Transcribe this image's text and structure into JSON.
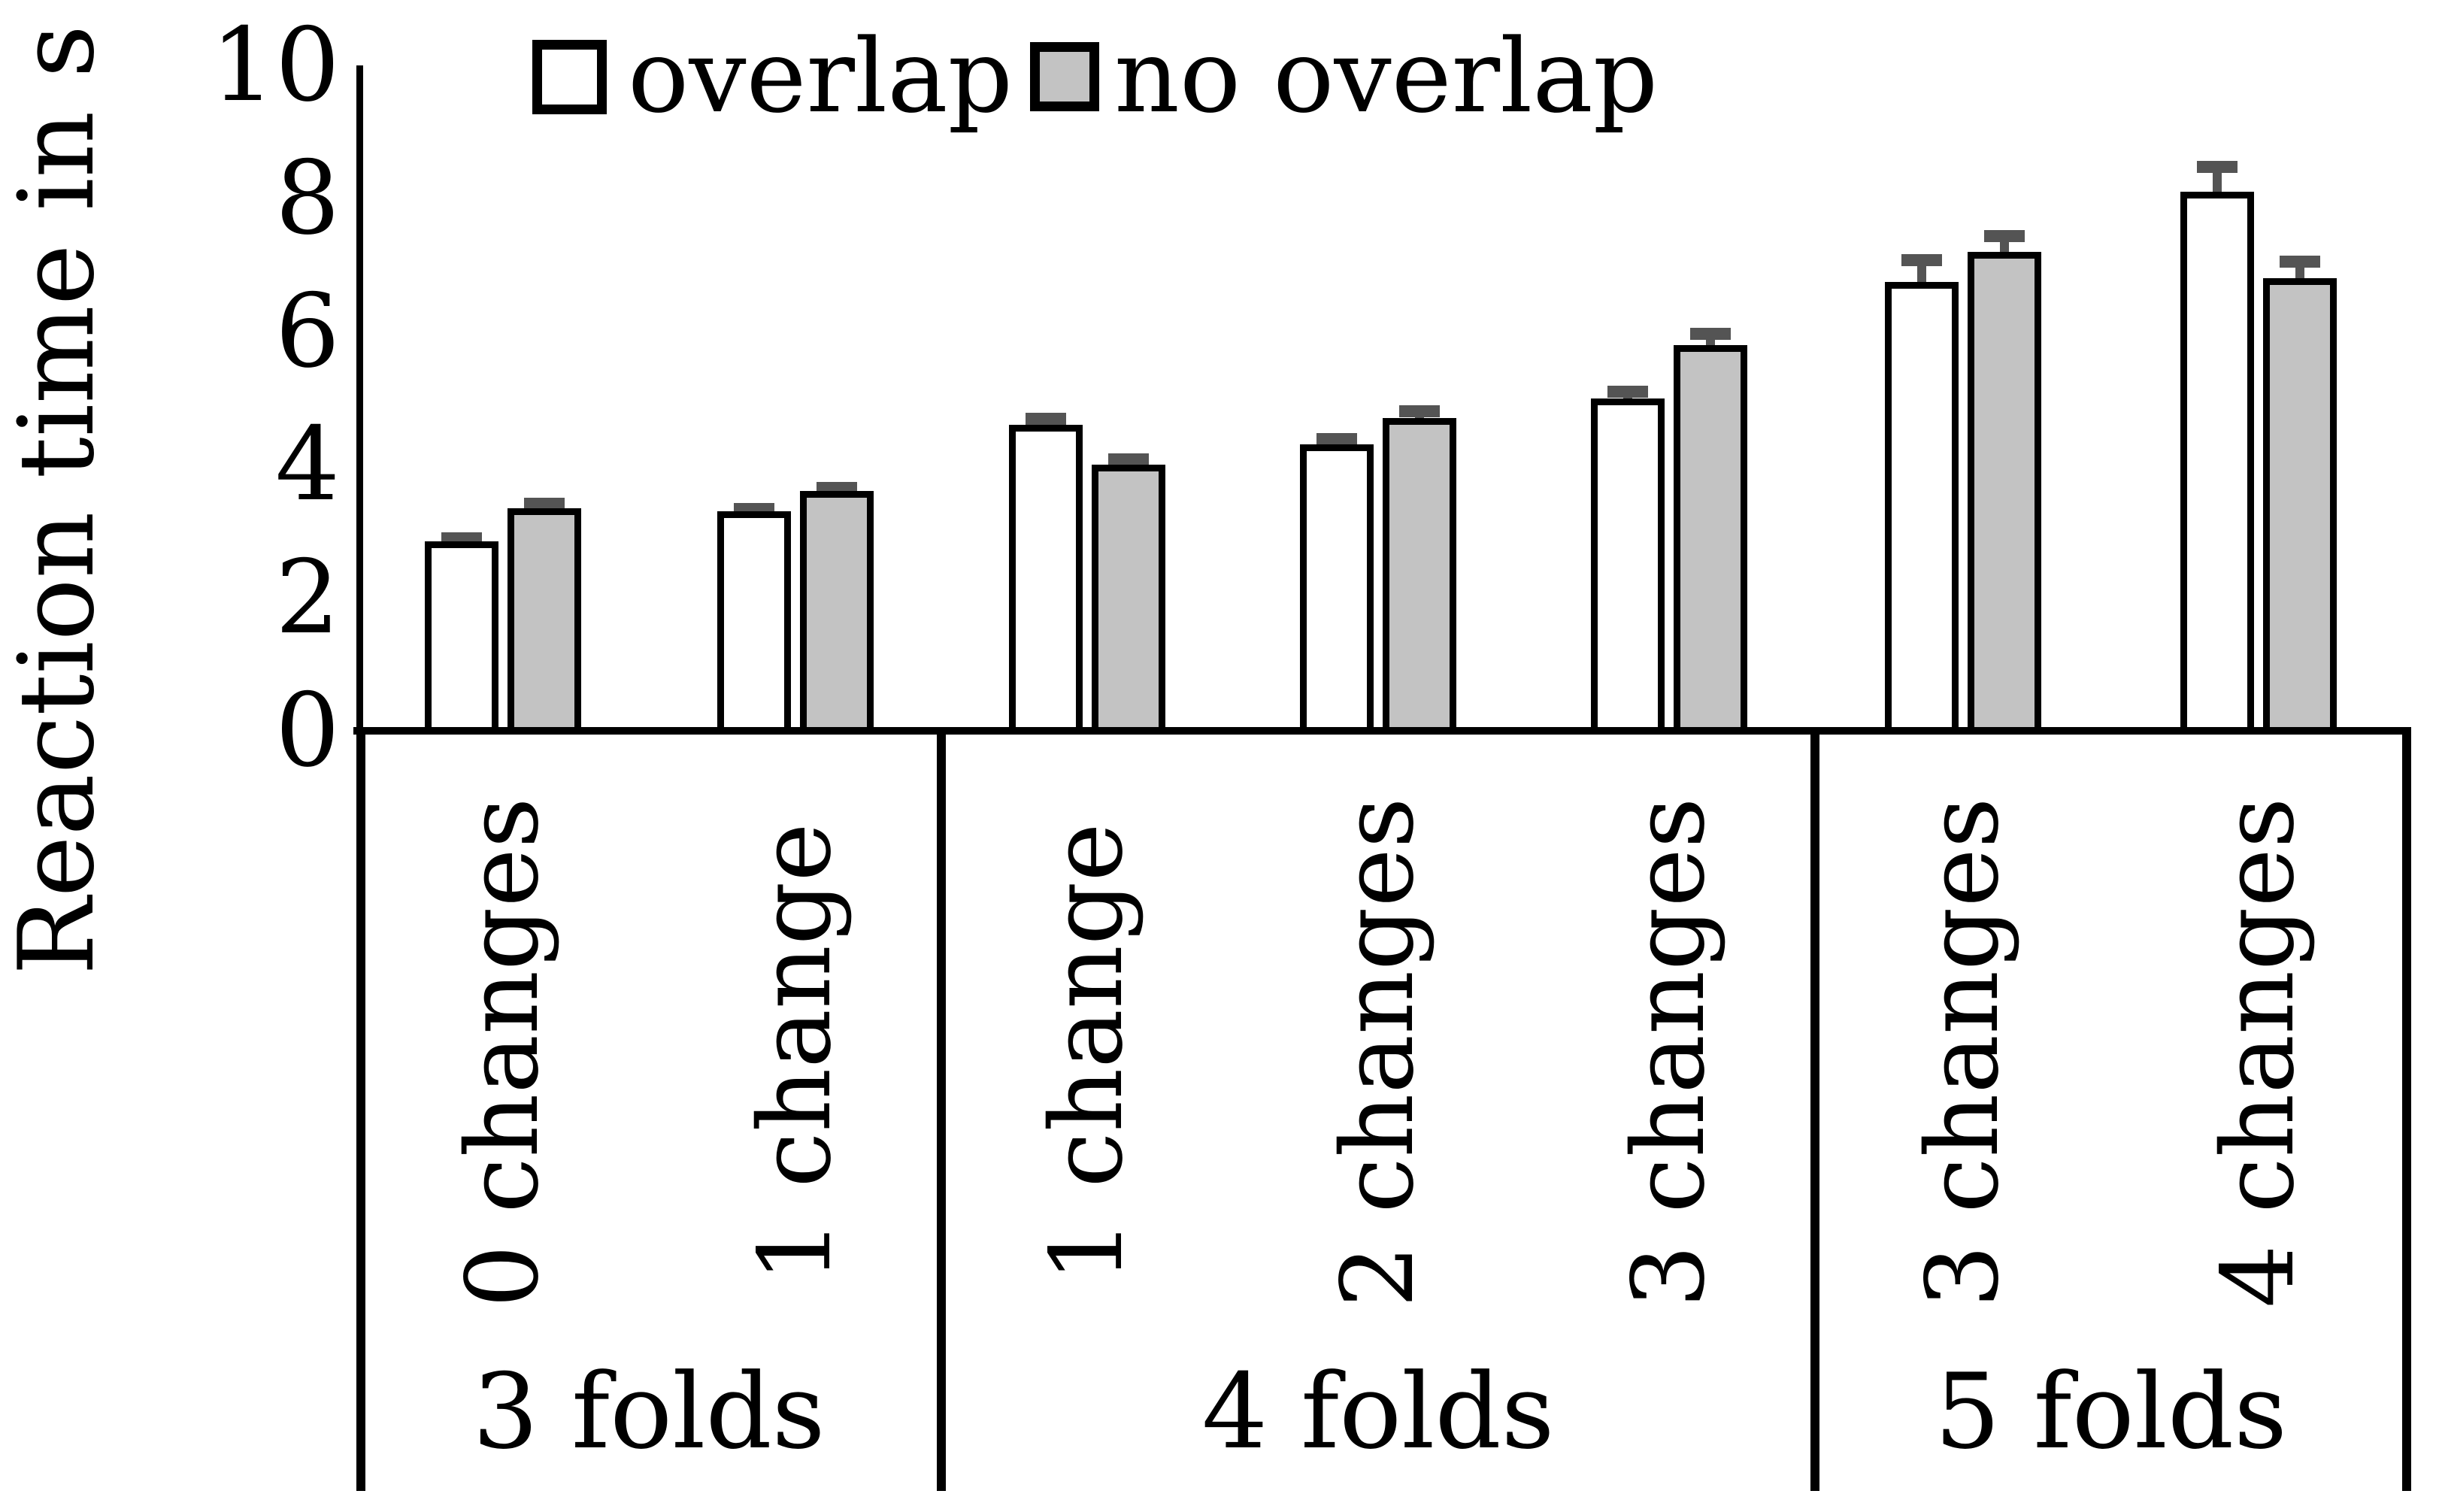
{
  "chart_data": {
    "type": "bar",
    "title": "",
    "ylabel": "Reaction time in s",
    "xlabel": "",
    "ylim": [
      0,
      10
    ],
    "yticks": [
      0,
      2,
      4,
      6,
      8,
      10
    ],
    "grid": false,
    "legend_position": "top",
    "legend": [
      {
        "label": "overlap",
        "fill": "#FFFFFF"
      },
      {
        "label": "no overlap",
        "fill": "#C3C3C3"
      }
    ],
    "series_names": [
      "overlap",
      "no overlap"
    ],
    "error_bars": "upper only, dark gray caps",
    "groups": [
      {
        "label": "3 folds",
        "items": [
          {
            "label": "0 changes",
            "overlap": 2.85,
            "overlap_err": 0.13,
            "no_overlap": 3.35,
            "no_overlap_err": 0.15
          },
          {
            "label": "1 change",
            "overlap": 3.3,
            "overlap_err": 0.12,
            "no_overlap": 3.6,
            "no_overlap_err": 0.14
          }
        ]
      },
      {
        "label": "4 folds",
        "items": [
          {
            "label": "1 change",
            "overlap": 4.6,
            "overlap_err": 0.18,
            "no_overlap": 4.0,
            "no_overlap_err": 0.17
          },
          {
            "label": "2 changes",
            "overlap": 4.3,
            "overlap_err": 0.17,
            "no_overlap": 4.7,
            "no_overlap_err": 0.19
          },
          {
            "label": "3 changes",
            "overlap": 5.0,
            "overlap_err": 0.19,
            "no_overlap": 5.8,
            "no_overlap_err": 0.26
          }
        ]
      },
      {
        "label": "5 folds",
        "items": [
          {
            "label": "3 changes",
            "overlap": 6.75,
            "overlap_err": 0.41,
            "no_overlap": 7.2,
            "no_overlap_err": 0.33
          },
          {
            "label": "4 changes",
            "overlap": 8.1,
            "overlap_err": 0.46,
            "no_overlap": 6.8,
            "no_overlap_err": 0.34
          }
        ]
      }
    ],
    "colors": {
      "overlap_fill": "#FFFFFF",
      "no_overlap_fill": "#C3C3C3",
      "bar_border": "#000000",
      "error_bar": "#545454",
      "axis": "#000000"
    }
  }
}
